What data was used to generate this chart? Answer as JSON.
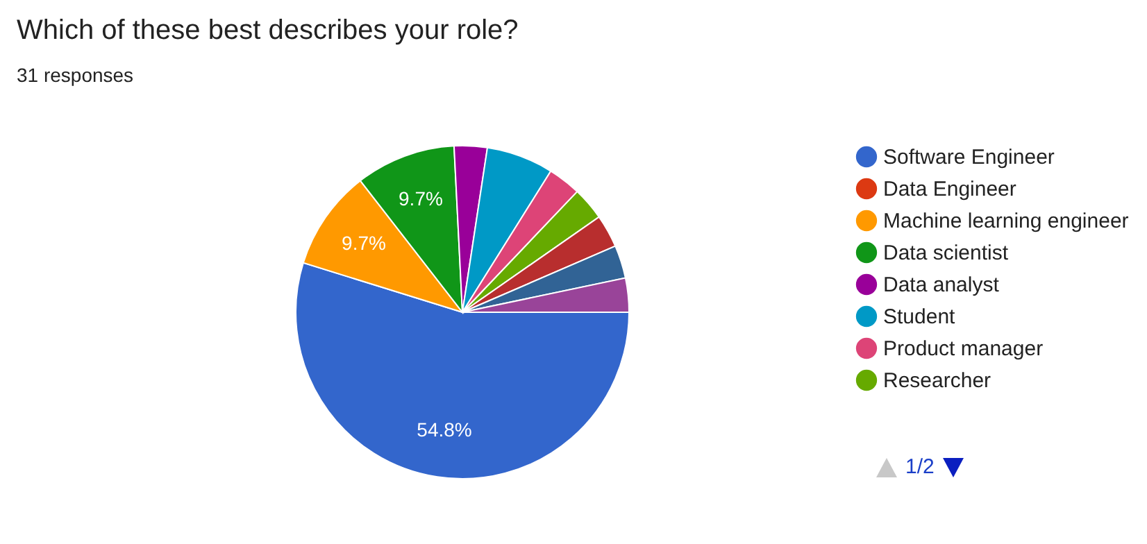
{
  "chart_data": {
    "type": "pie",
    "title": "Which of these best describes your role?",
    "subtitle": "31 responses",
    "categories": [
      "Software Engineer",
      "Data Engineer",
      "Machine learning engineer",
      "Data scientist",
      "Data analyst",
      "Student",
      "Product manager",
      "Researcher",
      null,
      null,
      null
    ],
    "values": [
      54.8,
      0,
      9.7,
      9.7,
      3.2,
      6.5,
      3.2,
      3.2,
      3.2,
      3.2,
      3.3
    ],
    "colors": [
      "#3366cc",
      "#dc3912",
      "#ff9900",
      "#109618",
      "#990099",
      "#0099c6",
      "#dd4477",
      "#66aa00",
      "#b82e2e",
      "#316395",
      "#994499"
    ],
    "value_labels": [
      "54.8%",
      null,
      "9.7%",
      "9.7%",
      null,
      null,
      null,
      null,
      null,
      null,
      null
    ],
    "legend": "right",
    "annotations": [
      "1/2"
    ]
  }
}
